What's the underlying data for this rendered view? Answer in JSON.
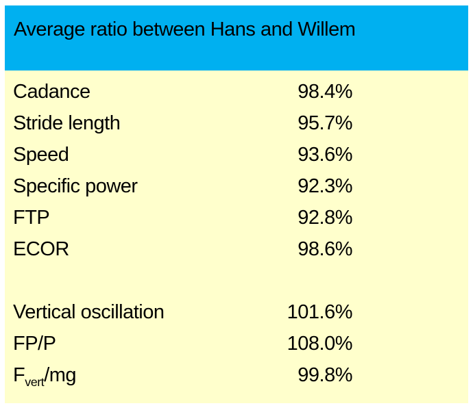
{
  "colors": {
    "header_bg": "#00B0F0",
    "body_bg": "#FFFFCC",
    "text": "#000000",
    "page_bg": "#FFFFFF"
  },
  "table": {
    "title": "Average ratio between Hans and Willem",
    "rows": [
      {
        "label": "Cadance",
        "value": "98.4%"
      },
      {
        "label": "Stride length",
        "value": "95.7%"
      },
      {
        "label": "Speed",
        "value": "93.6%"
      },
      {
        "label": "Specific power",
        "value": "92.3%"
      },
      {
        "label": "FTP",
        "value": "92.8%"
      },
      {
        "label": "ECOR",
        "value": "98.6%"
      },
      {
        "label": "",
        "value": "",
        "blank": true
      },
      {
        "label": "Vertical oscillation",
        "value": "101.6%"
      },
      {
        "label": "FP/P",
        "value": "108.0%"
      },
      {
        "label": {
          "pre": "F",
          "sub": "vert",
          "post": "/mg"
        },
        "value": "99.8%"
      }
    ]
  },
  "chart_data": {
    "type": "table",
    "title": "Average ratio between Hans and Willem",
    "categories": [
      "Cadance",
      "Stride length",
      "Speed",
      "Specific power",
      "FTP",
      "ECOR",
      "Vertical oscillation",
      "FP/P",
      "Fvert/mg"
    ],
    "values_pct": [
      98.4,
      95.7,
      93.6,
      92.3,
      92.8,
      98.6,
      101.6,
      108.0,
      99.8
    ],
    "value_format": "percent_one_decimal",
    "layout": {
      "title_bar_color": "#00B0F0",
      "body_color": "#FFFFCC",
      "grid": false,
      "value_alignment": "right"
    }
  }
}
